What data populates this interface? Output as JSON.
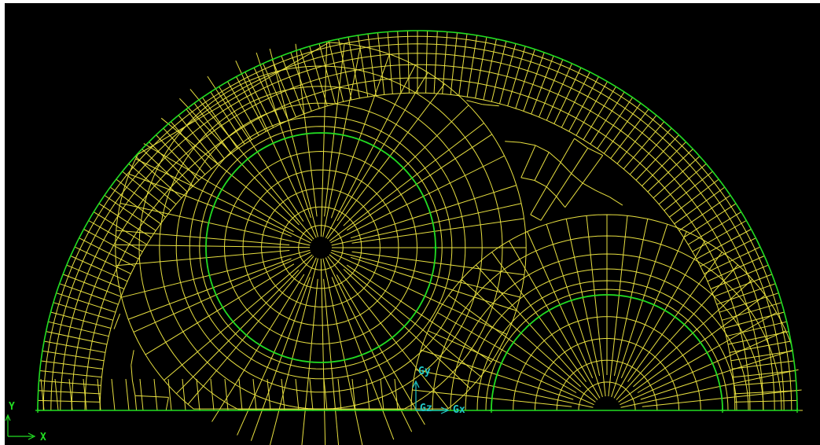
{
  "colors": {
    "background": "#000000",
    "mesh": "#e8e040",
    "geometry": "#22dd22",
    "gravity_axis": "#22c8c8",
    "global_axis": "#22dd22"
  },
  "gravity_axes": {
    "y_label": "Gy",
    "z_label": "Gz",
    "x_label": "Gx"
  },
  "global_axes": {
    "y_label": "Y",
    "x_label": "X"
  },
  "mesh": {
    "domain": "half-annulus",
    "outer_layers": 6,
    "large_hole_layers": 6,
    "small_hole_layers": 6,
    "large_hole_rings": 5,
    "small_hole_rings": 4
  }
}
